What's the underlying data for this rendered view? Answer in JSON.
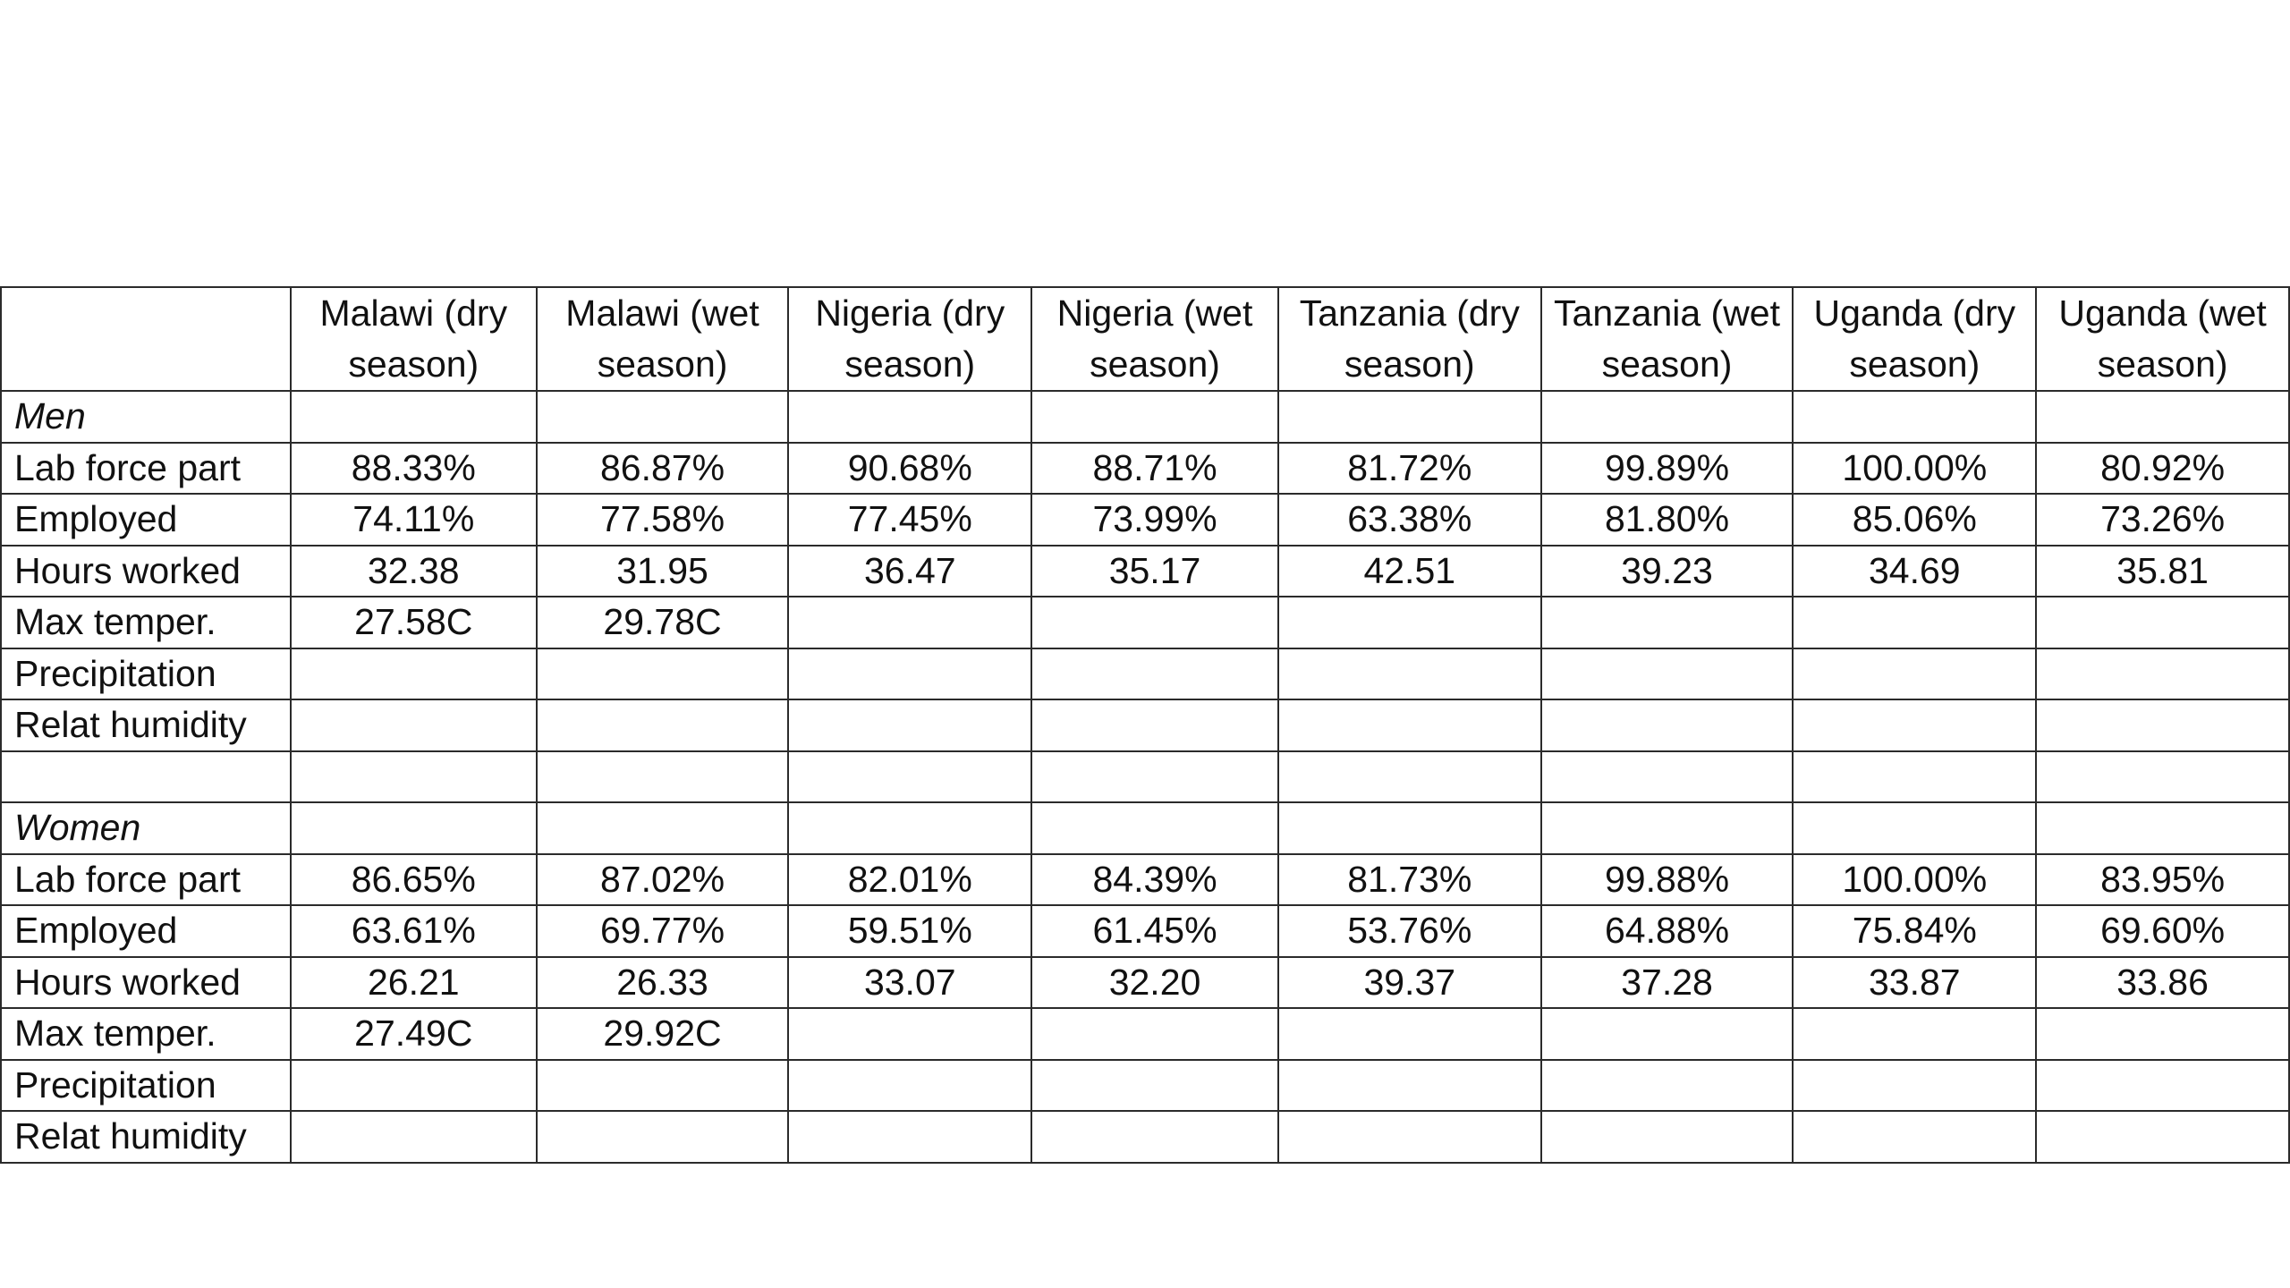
{
  "table": {
    "columns": [
      "Malawi (dry season)",
      "Malawi (wet season)",
      "Nigeria (dry season)",
      "Nigeria (wet season)",
      "Tanzania (dry season)",
      "Tanzania (wet season)",
      "Uganda (dry season)",
      "Uganda (wet season)"
    ],
    "sections": [
      {
        "title": "Men",
        "rows": [
          {
            "label": "Lab force part",
            "values": [
              "88.33%",
              "86.87%",
              "90.68%",
              "88.71%",
              "81.72%",
              "99.89%",
              "100.00%",
              "80.92%"
            ]
          },
          {
            "label": "Employed",
            "values": [
              "74.11%",
              "77.58%",
              "77.45%",
              "73.99%",
              "63.38%",
              "81.80%",
              "85.06%",
              "73.26%"
            ]
          },
          {
            "label": "Hours worked",
            "values": [
              "32.38",
              "31.95",
              "36.47",
              "35.17",
              "42.51",
              "39.23",
              "34.69",
              "35.81"
            ]
          },
          {
            "label": "Max temper.",
            "values": [
              "27.58C",
              "29.78C",
              "",
              "",
              "",
              "",
              "",
              ""
            ]
          },
          {
            "label": "Precipitation",
            "values": [
              "",
              "",
              "",
              "",
              "",
              "",
              "",
              ""
            ]
          },
          {
            "label": "Relat humidity",
            "values": [
              "",
              "",
              "",
              "",
              "",
              "",
              "",
              ""
            ]
          }
        ]
      },
      {
        "title": "Women",
        "rows": [
          {
            "label": "Lab force part",
            "values": [
              "86.65%",
              "87.02%",
              "82.01%",
              "84.39%",
              "81.73%",
              "99.88%",
              "100.00%",
              "83.95%"
            ]
          },
          {
            "label": "Employed",
            "values": [
              "63.61%",
              "69.77%",
              "59.51%",
              "61.45%",
              "53.76%",
              "64.88%",
              "75.84%",
              "69.60%"
            ]
          },
          {
            "label": "Hours worked",
            "values": [
              "26.21",
              "26.33",
              "33.07",
              "32.20",
              "39.37",
              "37.28",
              "33.87",
              "33.86"
            ]
          },
          {
            "label": "Max temper.",
            "values": [
              "27.49C",
              "29.92C",
              "",
              "",
              "",
              "",
              "",
              ""
            ]
          },
          {
            "label": "Precipitation",
            "values": [
              "",
              "",
              "",
              "",
              "",
              "",
              "",
              ""
            ]
          },
          {
            "label": "Relat humidity",
            "values": [
              "",
              "",
              "",
              "",
              "",
              "",
              "",
              ""
            ]
          }
        ]
      }
    ]
  }
}
